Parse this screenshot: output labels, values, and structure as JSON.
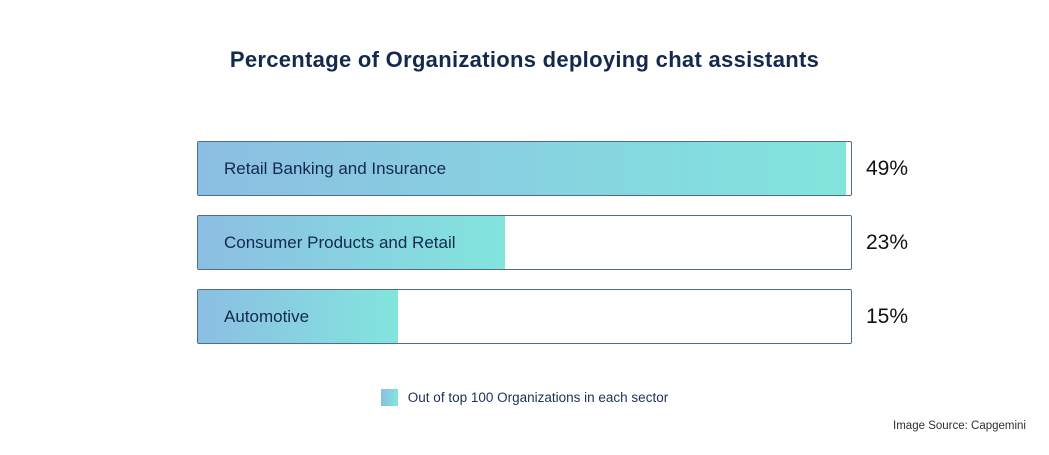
{
  "title": "Percentage of Organizations deploying chat assistants",
  "chart_data": {
    "type": "bar",
    "orientation": "horizontal",
    "title": "Percentage of Organizations deploying chat assistants",
    "categories": [
      "Retail Banking and Insurance",
      "Consumer Products and Retail",
      "Automotive"
    ],
    "values": [
      49,
      23,
      15
    ],
    "unit": "%",
    "axis_max": 49,
    "grid": false,
    "legend_position": "bottom-center",
    "legend": "Out of top 100 Organizations in each sector",
    "source": "Image Source: Capgemini",
    "colors": {
      "fill_gradient_start": "#8cbee3",
      "fill_gradient_end": "#82e5dd",
      "track_border": "#4d6d8f",
      "title_text": "#13294e",
      "bar_label_text": "#13294e",
      "value_text": "#101114",
      "legend_text": "#1a3258",
      "source_text": "#2f3033",
      "background": "#ffffff"
    }
  },
  "bars": [
    {
      "label": "Retail Banking and Insurance",
      "value": 49,
      "value_label": "49%"
    },
    {
      "label": "Consumer Products and Retail",
      "value": 23,
      "value_label": "23%"
    },
    {
      "label": "Automotive",
      "value": 15,
      "value_label": "15%"
    }
  ],
  "legend": {
    "label": "Out of top 100 Organizations in each sector"
  },
  "source": {
    "label": "Image Source: Capgemini"
  }
}
